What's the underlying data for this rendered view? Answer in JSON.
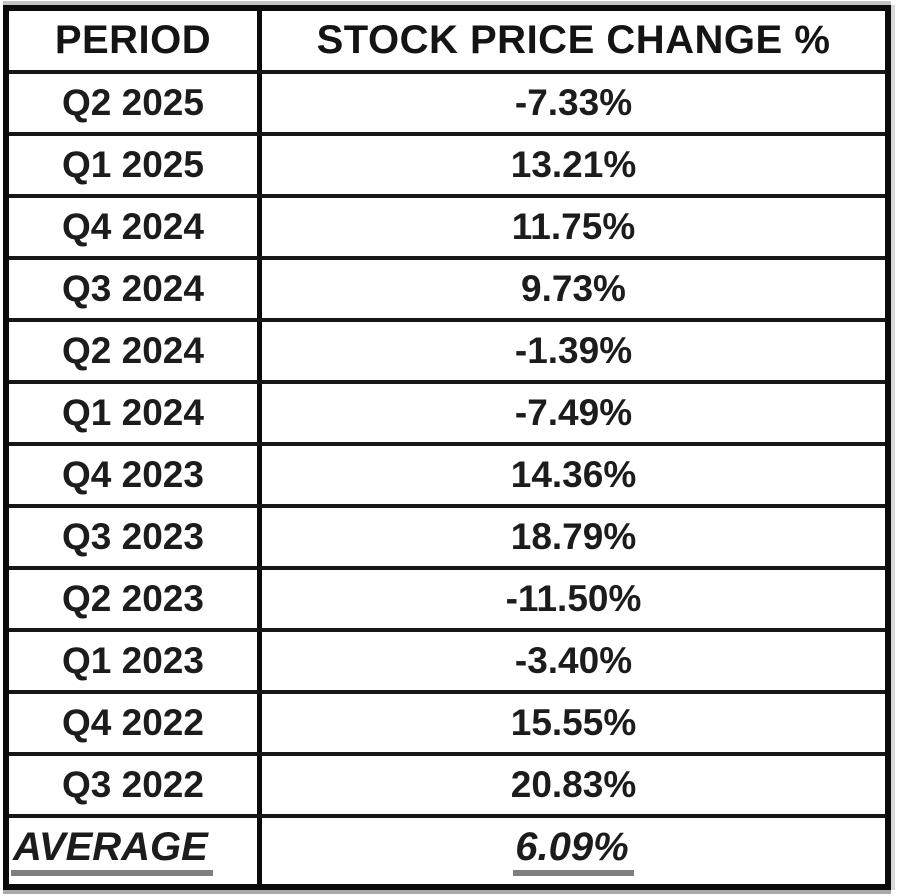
{
  "table": {
    "headers": {
      "period": "PERIOD",
      "change": "STOCK PRICE CHANGE %"
    },
    "rows": [
      {
        "period": "Q2 2025",
        "change": "-7.33%"
      },
      {
        "period": "Q1 2025",
        "change": "13.21%"
      },
      {
        "period": "Q4 2024",
        "change": "11.75%"
      },
      {
        "period": "Q3 2024",
        "change": "9.73%"
      },
      {
        "period": "Q2 2024",
        "change": "-1.39%"
      },
      {
        "period": "Q1 2024",
        "change": "-7.49%"
      },
      {
        "period": "Q4 2023",
        "change": "14.36%"
      },
      {
        "period": "Q3 2023",
        "change": "18.79%"
      },
      {
        "period": "Q2 2023",
        "change": "-11.50%"
      },
      {
        "period": "Q1 2023",
        "change": "-3.40%"
      },
      {
        "period": "Q4 2022",
        "change": "15.55%"
      },
      {
        "period": "Q3 2022",
        "change": "20.83%"
      }
    ],
    "footer": {
      "label": "AVERAGE",
      "value": "6.09%"
    }
  },
  "colors": {
    "background": "#ffffff",
    "border": "#0b0b0b",
    "text": "#1c1c1c",
    "underline": "#7e7e7e"
  },
  "chart_data": {
    "type": "table",
    "title": "STOCK PRICE CHANGE %",
    "columns": [
      "PERIOD",
      "STOCK PRICE CHANGE %"
    ],
    "rows": [
      [
        "Q2 2025",
        -7.33
      ],
      [
        "Q1 2025",
        13.21
      ],
      [
        "Q4 2024",
        11.75
      ],
      [
        "Q3 2024",
        9.73
      ],
      [
        "Q2 2024",
        -1.39
      ],
      [
        "Q1 2024",
        -7.49
      ],
      [
        "Q4 2023",
        14.36
      ],
      [
        "Q3 2023",
        18.79
      ],
      [
        "Q2 2023",
        -11.5
      ],
      [
        "Q1 2023",
        -3.4
      ],
      [
        "Q4 2022",
        15.55
      ],
      [
        "Q3 2022",
        20.83
      ]
    ],
    "average": 6.09
  }
}
